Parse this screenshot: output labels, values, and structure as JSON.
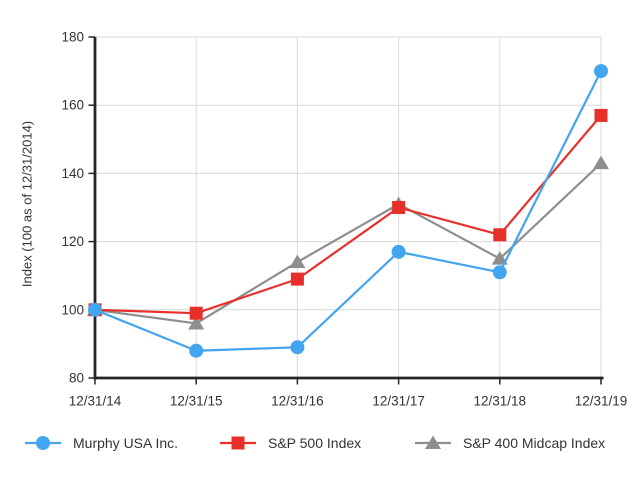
{
  "chart_data": {
    "type": "line",
    "title": "",
    "xlabel": "",
    "ylabel": "Index (100 as of 12/31/2014)",
    "categories": [
      "12/31/14",
      "12/31/15",
      "12/31/16",
      "12/31/17",
      "12/31/18",
      "12/31/19"
    ],
    "ylim": [
      80,
      180
    ],
    "yticks": [
      80,
      100,
      120,
      140,
      160,
      180
    ],
    "grid": true,
    "legend_position": "bottom",
    "series": [
      {
        "name": "Murphy USA Inc.",
        "marker": "circle",
        "color": "#42A5F0",
        "values": [
          100,
          88,
          89,
          117,
          111,
          170
        ]
      },
      {
        "name": "S&P 500 Index",
        "marker": "square",
        "color": "#E8302B",
        "values": [
          100,
          99,
          109,
          130,
          122,
          157
        ]
      },
      {
        "name": "S&P 400 Midcap Index",
        "marker": "triangle",
        "color": "#8E8E8E",
        "values": [
          100,
          96,
          114,
          131,
          115,
          143
        ]
      }
    ],
    "colors": {
      "axis": "#262626",
      "grid": "#D9D9D9",
      "text": "#333333",
      "background": "#FFFFFF"
    }
  }
}
